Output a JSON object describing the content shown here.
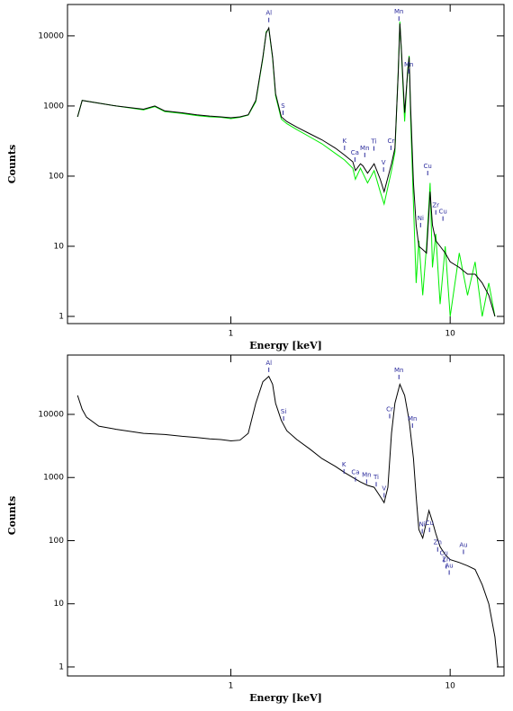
{
  "chart_data": [
    {
      "type": "line",
      "xlabel": "Energy [keV]",
      "ylabel": "Counts",
      "xlog": true,
      "ylog": true,
      "xlim": [
        0.18,
        17.6
      ],
      "ylim": [
        0.79,
        28000
      ],
      "xticks": [
        1,
        10
      ],
      "yticks": [
        1,
        10,
        100,
        1000,
        10000
      ],
      "x": [
        0.2,
        0.21,
        0.3,
        0.4,
        0.45,
        0.5,
        0.6,
        0.7,
        0.8,
        0.9,
        1.0,
        1.1,
        1.2,
        1.3,
        1.4,
        1.45,
        1.49,
        1.55,
        1.6,
        1.7,
        1.8,
        2.0,
        2.3,
        2.6,
        3.0,
        3.3,
        3.6,
        3.7,
        3.9,
        4.0,
        4.2,
        4.5,
        4.8,
        5.0,
        5.4,
        5.6,
        5.8,
        5.9,
        6.0,
        6.2,
        6.4,
        6.5,
        6.6,
        6.8,
        7.0,
        7.2,
        7.5,
        7.8,
        8.0,
        8.1,
        8.3,
        8.6,
        9.0,
        9.5,
        10,
        11,
        12,
        13,
        14,
        15,
        16
      ],
      "series": [
        {
          "color": "#000000",
          "values": [
            700,
            1200,
            1000,
            900,
            1000,
            850,
            800,
            750,
            720,
            700,
            680,
            700,
            750,
            1200,
            5000,
            11000,
            13000,
            5000,
            1500,
            700,
            600,
            500,
            400,
            330,
            250,
            200,
            160,
            120,
            150,
            140,
            110,
            150,
            90,
            60,
            150,
            250,
            3000,
            15000,
            6000,
            800,
            3000,
            5000,
            1000,
            80,
            20,
            10,
            9,
            8,
            30,
            60,
            20,
            12,
            10,
            8,
            6,
            5,
            4,
            4,
            3,
            2,
            1
          ]
        },
        {
          "color": "#00ee00",
          "values": [
            700,
            1200,
            1000,
            880,
            980,
            830,
            780,
            730,
            700,
            690,
            660,
            690,
            740,
            1150,
            4800,
            11500,
            12500,
            4800,
            1400,
            650,
            560,
            460,
            360,
            290,
            210,
            170,
            130,
            90,
            130,
            110,
            80,
            120,
            60,
            40,
            120,
            220,
            3200,
            16000,
            5500,
            600,
            3200,
            5200,
            700,
            40,
            3,
            12,
            2,
            10,
            40,
            80,
            5,
            15,
            1.5,
            10,
            1,
            8,
            2,
            6,
            1,
            3,
            1
          ]
        }
      ],
      "annotations": [
        {
          "text": "Al",
          "x": 1.49,
          "y": 21000
        },
        {
          "text": "S",
          "x": 1.73,
          "y": 1000
        },
        {
          "text": "K",
          "x": 3.3,
          "y": 316
        },
        {
          "text": "Ca",
          "x": 3.68,
          "y": 215
        },
        {
          "text": "Mn",
          "x": 4.08,
          "y": 250
        },
        {
          "text": "Ti",
          "x": 4.49,
          "y": 310
        },
        {
          "text": "V",
          "x": 4.97,
          "y": 155
        },
        {
          "text": "Cr",
          "x": 5.37,
          "y": 316
        },
        {
          "text": "Mn",
          "x": 5.84,
          "y": 22000
        },
        {
          "text": "Mn",
          "x": 6.48,
          "y": 3900
        },
        {
          "text": "Cu",
          "x": 7.9,
          "y": 138
        },
        {
          "text": "Ni",
          "x": 7.33,
          "y": 25
        },
        {
          "text": "Zr",
          "x": 8.6,
          "y": 38
        },
        {
          "text": "Cu",
          "x": 9.27,
          "y": 31
        }
      ]
    },
    {
      "type": "line",
      "xlabel": "Energy [keV]",
      "ylabel": "Counts",
      "xlog": true,
      "ylog": true,
      "xlim": [
        0.18,
        17.6
      ],
      "ylim": [
        0.72,
        87000
      ],
      "xticks": [
        1,
        10
      ],
      "yticks": [
        1,
        10,
        100,
        1000,
        10000
      ],
      "x": [
        0.2,
        0.21,
        0.22,
        0.25,
        0.3,
        0.4,
        0.5,
        0.6,
        0.7,
        0.8,
        0.9,
        1.0,
        1.1,
        1.2,
        1.3,
        1.4,
        1.49,
        1.55,
        1.6,
        1.7,
        1.8,
        2.0,
        2.3,
        2.6,
        3.0,
        3.3,
        3.6,
        3.9,
        4.2,
        4.5,
        4.8,
        5.0,
        5.2,
        5.4,
        5.6,
        5.9,
        6.2,
        6.5,
        6.8,
        7.0,
        7.2,
        7.5,
        7.8,
        8.0,
        8.3,
        8.6,
        9.0,
        9.5,
        10,
        11,
        12,
        13,
        14,
        15,
        16,
        16.5
      ],
      "series": [
        {
          "color": "#000000",
          "values": [
            20000,
            12000,
            9000,
            6500,
            5800,
            5000,
            4800,
            4500,
            4300,
            4100,
            4000,
            3800,
            3900,
            5000,
            15000,
            33000,
            40000,
            30000,
            15000,
            8000,
            5500,
            4000,
            2800,
            2000,
            1500,
            1200,
            1000,
            850,
            750,
            700,
            500,
            400,
            700,
            5000,
            15000,
            30000,
            20000,
            8000,
            2000,
            500,
            150,
            110,
            200,
            300,
            200,
            130,
            80,
            60,
            50,
            45,
            40,
            35,
            20,
            10,
            3,
            1
          ]
        }
      ],
      "annotations": [
        {
          "text": "Al",
          "x": 1.49,
          "y": 65000
        },
        {
          "text": "Si",
          "x": 1.74,
          "y": 11000
        },
        {
          "text": "Cr",
          "x": 5.3,
          "y": 12000
        },
        {
          "text": "Mn",
          "x": 5.84,
          "y": 50000
        },
        {
          "text": "Mn",
          "x": 6.73,
          "y": 8500
        },
        {
          "text": "K",
          "x": 3.28,
          "y": 1600
        },
        {
          "text": "Ca",
          "x": 3.7,
          "y": 1200
        },
        {
          "text": "Mn",
          "x": 4.16,
          "y": 1100
        },
        {
          "text": "Ti",
          "x": 4.6,
          "y": 1000
        },
        {
          "text": "V",
          "x": 5.0,
          "y": 670
        },
        {
          "text": "Cu",
          "x": 8.05,
          "y": 190
        },
        {
          "text": "Ni",
          "x": 7.46,
          "y": 180
        },
        {
          "text": "Zn",
          "x": 8.77,
          "y": 93
        },
        {
          "text": "Cu",
          "x": 9.36,
          "y": 63
        },
        {
          "text": "Zn",
          "x": 9.6,
          "y": 50
        },
        {
          "text": "Au",
          "x": 9.9,
          "y": 40
        },
        {
          "text": "Au",
          "x": 11.5,
          "y": 85
        }
      ]
    }
  ]
}
